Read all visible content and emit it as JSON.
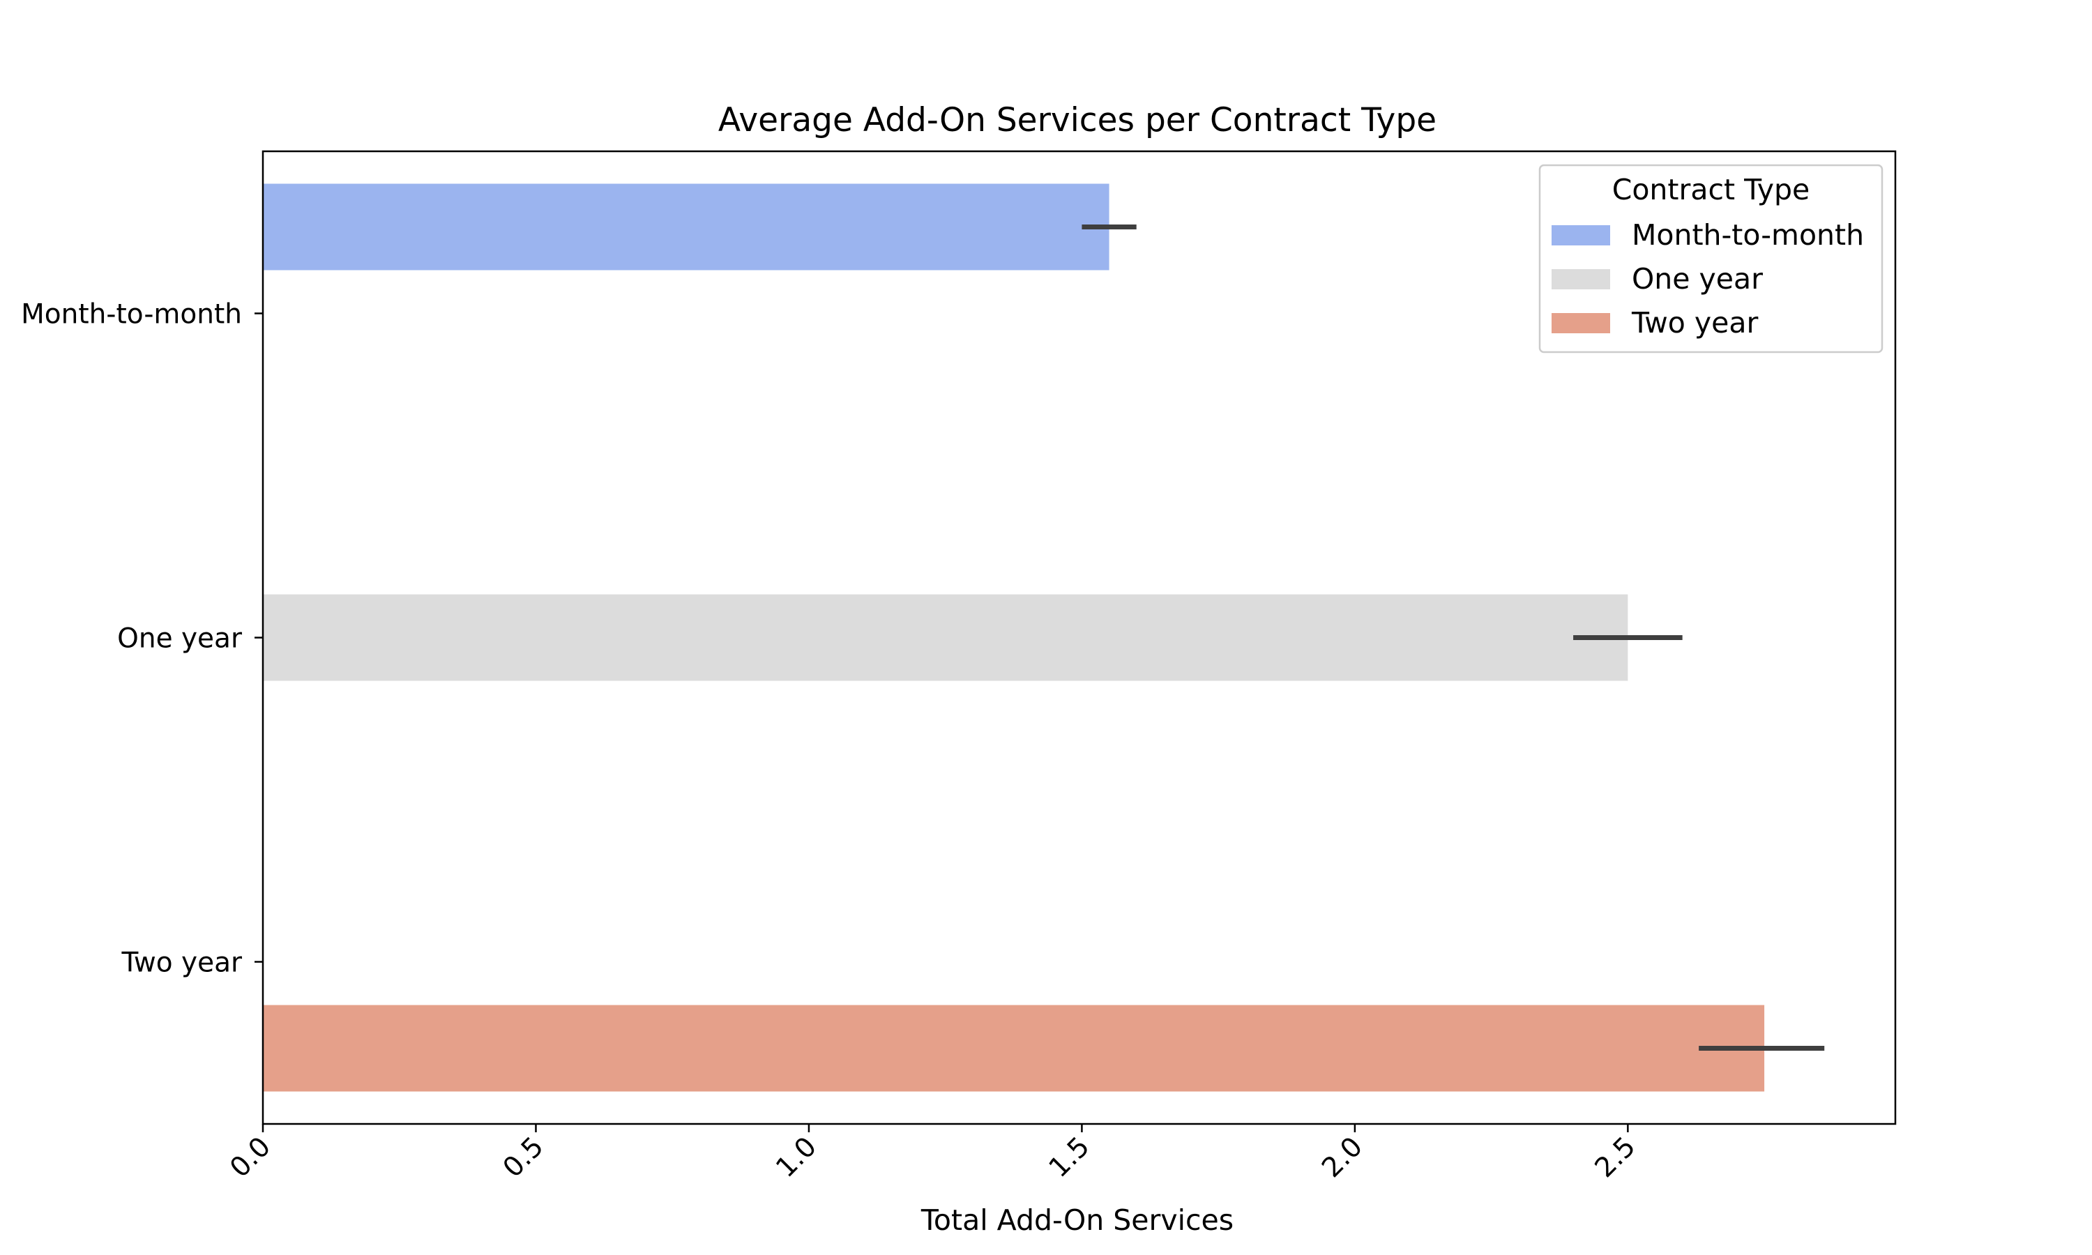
{
  "chart_data": {
    "type": "bar",
    "orientation": "horizontal",
    "title": "Average Add-On Services per Contract Type",
    "xlabel": "Total Add-On Services",
    "ylabel": "",
    "categories": [
      "Month-to-month",
      "One year",
      "Two year"
    ],
    "xlim": [
      0,
      2.99
    ],
    "xticks": [
      "0.0",
      "0.5",
      "1.0",
      "1.5",
      "2.0",
      "2.5"
    ],
    "grid": false,
    "legend": {
      "title": "Contract Type",
      "placement": "top-right"
    },
    "series": [
      {
        "name": "Month-to-month",
        "color": "#9bb4ef",
        "values": [
          1.55,
          null,
          null
        ],
        "error": [
          [
            1.5,
            1.6
          ],
          null,
          null
        ]
      },
      {
        "name": "One year",
        "color": "#dcdcdc",
        "values": [
          null,
          2.5,
          null
        ],
        "error": [
          null,
          [
            2.4,
            2.6
          ],
          null
        ]
      },
      {
        "name": "Two year",
        "color": "#e5a08a",
        "values": [
          null,
          null,
          2.75
        ],
        "error": [
          null,
          null,
          [
            2.63,
            2.86
          ]
        ]
      }
    ],
    "error_bar_color": "#3f3f3f"
  }
}
